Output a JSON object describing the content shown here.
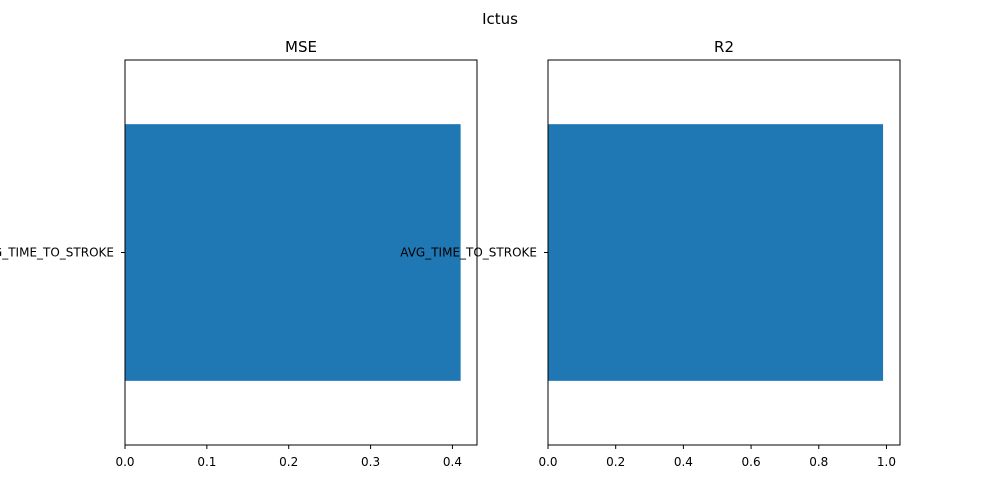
{
  "figure": {
    "suptitle": "Ictus"
  },
  "colors": {
    "bar": "#1f77b4",
    "axis": "#000000",
    "background": "#ffffff"
  },
  "chart_data": [
    {
      "type": "bar",
      "orientation": "horizontal",
      "title": "MSE",
      "categories": [
        "AVG_TIME_TO_STROKE"
      ],
      "values": [
        0.41
      ],
      "xlim": [
        0,
        0.43
      ],
      "xticks": [
        0.0,
        0.1,
        0.2,
        0.3,
        0.4
      ],
      "xtick_labels": [
        "0.0",
        "0.1",
        "0.2",
        "0.3",
        "0.4"
      ],
      "xlabel": "",
      "ylabel": "",
      "grid": false
    },
    {
      "type": "bar",
      "orientation": "horizontal",
      "title": "R2",
      "categories": [
        "AVG_TIME_TO_STROKE"
      ],
      "values": [
        0.99
      ],
      "xlim": [
        0,
        1.04
      ],
      "xticks": [
        0.0,
        0.2,
        0.4,
        0.6,
        0.8,
        1.0
      ],
      "xtick_labels": [
        "0.0",
        "0.2",
        "0.4",
        "0.6",
        "0.8",
        "1.0"
      ],
      "xlabel": "",
      "ylabel": "",
      "grid": false
    }
  ]
}
